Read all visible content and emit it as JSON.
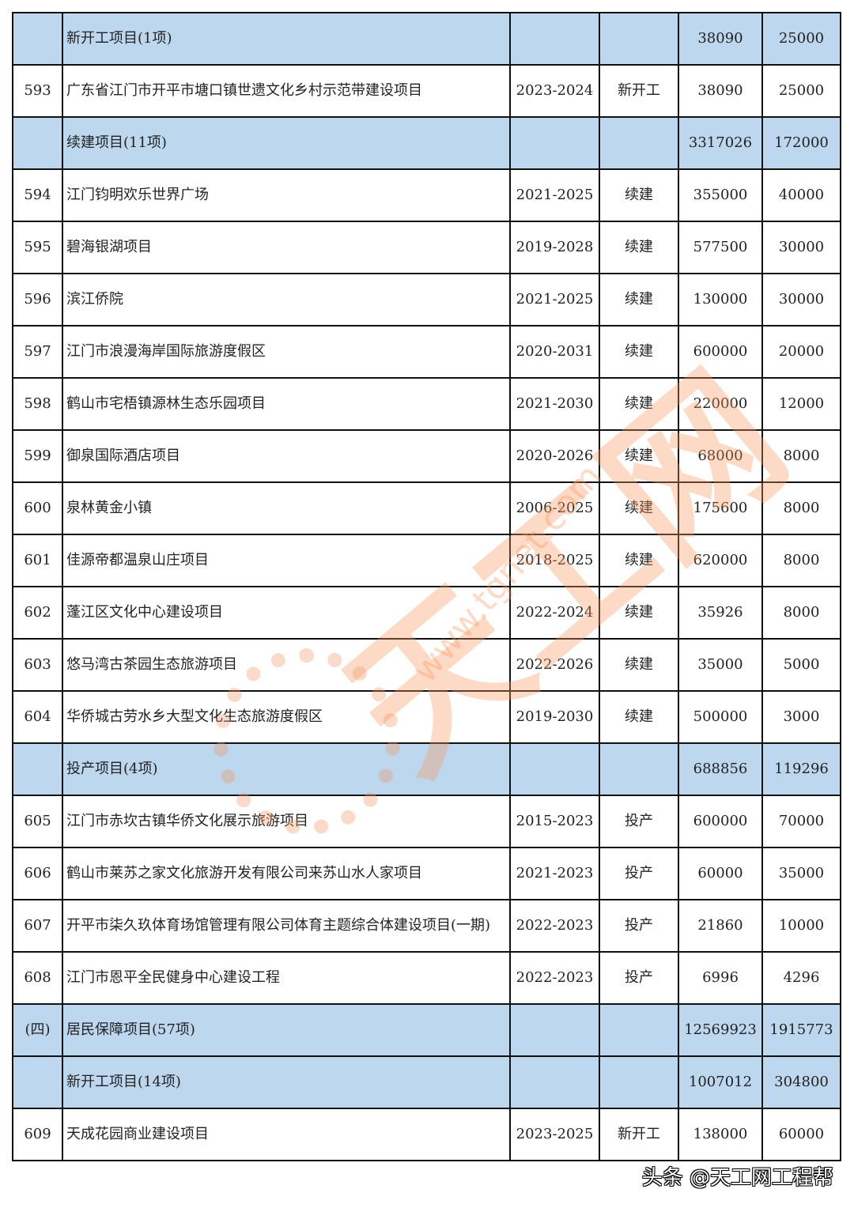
{
  "table": {
    "rows": [
      {
        "type": "section",
        "no": "",
        "name": "新开工项目(1项)",
        "period": "",
        "status": "",
        "total": "38090",
        "annual": "25000"
      },
      {
        "type": "item",
        "no": "593",
        "name": "广东省江门市开平市塘口镇世遗文化乡村示范带建设项目",
        "period": "2023-2024",
        "status": "新开工",
        "total": "38090",
        "annual": "25000"
      },
      {
        "type": "section",
        "no": "",
        "name": "续建项目(11项)",
        "period": "",
        "status": "",
        "total": "3317026",
        "annual": "172000"
      },
      {
        "type": "item",
        "no": "594",
        "name": "江门钧明欢乐世界广场",
        "period": "2021-2025",
        "status": "续建",
        "total": "355000",
        "annual": "40000"
      },
      {
        "type": "item",
        "no": "595",
        "name": "碧海银湖项目",
        "period": "2019-2028",
        "status": "续建",
        "total": "577500",
        "annual": "30000"
      },
      {
        "type": "item",
        "no": "596",
        "name": "滨江侨院",
        "period": "2021-2025",
        "status": "续建",
        "total": "130000",
        "annual": "30000"
      },
      {
        "type": "item",
        "no": "597",
        "name": "江门市浪漫海岸国际旅游度假区",
        "period": "2020-2031",
        "status": "续建",
        "total": "600000",
        "annual": "20000"
      },
      {
        "type": "item",
        "no": "598",
        "name": "鹤山市宅梧镇源林生态乐园项目",
        "period": "2021-2030",
        "status": "续建",
        "total": "220000",
        "annual": "12000"
      },
      {
        "type": "item",
        "no": "599",
        "name": "御泉国际酒店项目",
        "period": "2020-2026",
        "status": "续建",
        "total": "68000",
        "annual": "8000"
      },
      {
        "type": "item",
        "no": "600",
        "name": "泉林黄金小镇",
        "period": "2006-2025",
        "status": "续建",
        "total": "175600",
        "annual": "8000"
      },
      {
        "type": "item",
        "no": "601",
        "name": "佳源帝都温泉山庄项目",
        "period": "2018-2025",
        "status": "续建",
        "total": "620000",
        "annual": "8000"
      },
      {
        "type": "item",
        "no": "602",
        "name": "蓬江区文化中心建设项目",
        "period": "2022-2024",
        "status": "续建",
        "total": "35926",
        "annual": "8000"
      },
      {
        "type": "item",
        "no": "603",
        "name": "悠马湾古茶园生态旅游项目",
        "period": "2022-2026",
        "status": "续建",
        "total": "35000",
        "annual": "5000"
      },
      {
        "type": "item",
        "no": "604",
        "name": "华侨城古劳水乡大型文化生态旅游度假区",
        "period": "2019-2030",
        "status": "续建",
        "total": "500000",
        "annual": "3000"
      },
      {
        "type": "section",
        "no": "",
        "name": "投产项目(4项)",
        "period": "",
        "status": "",
        "total": "688856",
        "annual": "119296"
      },
      {
        "type": "item",
        "no": "605",
        "name": "江门市赤坎古镇华侨文化展示旅游项目",
        "period": "2015-2023",
        "status": "投产",
        "total": "600000",
        "annual": "70000"
      },
      {
        "type": "item",
        "no": "606",
        "name": "鹤山市莱苏之家文化旅游开发有限公司来苏山水人家项目",
        "period": "2021-2023",
        "status": "投产",
        "total": "60000",
        "annual": "35000"
      },
      {
        "type": "item",
        "no": "607",
        "name": "开平市柒久玖体育场馆管理有限公司体育主题综合体建设项目(一期)",
        "period": "2022-2023",
        "status": "投产",
        "total": "21860",
        "annual": "10000"
      },
      {
        "type": "item",
        "no": "608",
        "name": "江门市恩平全民健身中心建设工程",
        "period": "2022-2023",
        "status": "投产",
        "total": "6996",
        "annual": "4296"
      },
      {
        "type": "section",
        "no": "(四)",
        "name": "居民保障项目(57项)",
        "period": "",
        "status": "",
        "total": "12569923",
        "annual": "1915773"
      },
      {
        "type": "section",
        "no": "",
        "name": "新开工项目(14项)",
        "period": "",
        "status": "",
        "total": "1007012",
        "annual": "304800"
      },
      {
        "type": "item",
        "no": "609",
        "name": "天成花园商业建设项目",
        "period": "2023-2025",
        "status": "新开工",
        "total": "138000",
        "annual": "60000"
      }
    ]
  },
  "colors": {
    "section_bg": "#bdd7ee",
    "border": "#111111",
    "watermark": "#f8965a"
  },
  "watermark": {
    "logo": "天工网",
    "url": "www.tgnet.com",
    "footer": "头条 @天工网工程帮"
  }
}
